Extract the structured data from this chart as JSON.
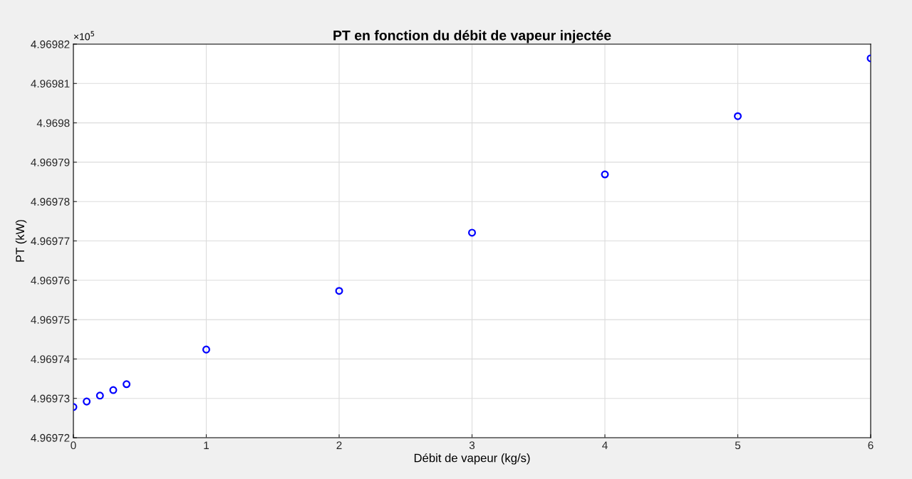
{
  "chart_data": {
    "type": "scatter",
    "title": "PT en fonction du débit de vapeur injectée",
    "xlabel": "Débit de vapeur (kg/s)",
    "ylabel": "PT (kW)",
    "x": [
      0,
      0.1,
      0.2,
      0.3,
      0.4,
      1,
      2,
      3,
      4,
      5,
      6
    ],
    "series": [
      {
        "color": "#0000ff",
        "values": [
          4.9697278,
          4.9697292,
          4.9697307,
          4.9697321,
          4.9697336,
          4.9697424,
          4.9697573,
          4.9697721,
          4.9697869,
          4.9698017,
          4.9698164
        ]
      }
    ],
    "marker": "circle",
    "grid": true,
    "xlim": [
      0,
      6
    ],
    "xticks": [
      0,
      1,
      2,
      3,
      4,
      5,
      6
    ],
    "ylim": [
      4.96972,
      4.96982
    ],
    "yticks": [
      4.96972,
      4.96973,
      4.96974,
      4.96975,
      4.96976,
      4.96977,
      4.96978,
      4.96979,
      4.9698,
      4.96981,
      4.96982
    ],
    "annotations": [
      "×10$^{5}$"
    ]
  }
}
